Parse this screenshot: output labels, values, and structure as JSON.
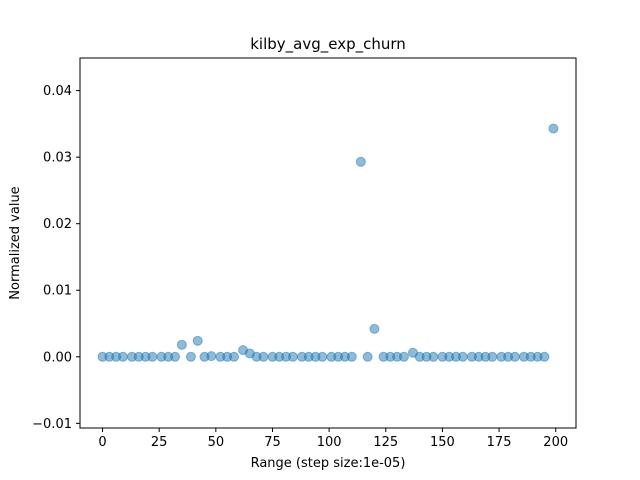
{
  "chart_data": {
    "type": "scatter",
    "title": "kilby_avg_exp_churn",
    "xlabel": "Range (step size:1e-05)",
    "ylabel": "Normalized value",
    "xlim": [
      -9.95,
      208.95
    ],
    "ylim": [
      -0.0107,
      0.0449
    ],
    "xticks": [
      0,
      25,
      50,
      75,
      100,
      125,
      150,
      175,
      200
    ],
    "xtick_labels": [
      "0",
      "25",
      "50",
      "75",
      "100",
      "125",
      "150",
      "175",
      "200"
    ],
    "yticks": [
      -0.01,
      0.0,
      0.01,
      0.02,
      0.03,
      0.04
    ],
    "ytick_labels": [
      "−0.01",
      "0.00",
      "0.01",
      "0.02",
      "0.03",
      "0.04"
    ],
    "grid": false,
    "marker_color": "#1f77b4",
    "marker_alpha": 0.5,
    "points": [
      [
        0,
        0.0
      ],
      [
        3,
        0.0
      ],
      [
        6,
        0.0
      ],
      [
        9,
        0.0
      ],
      [
        13,
        0.0
      ],
      [
        16,
        0.0
      ],
      [
        19,
        0.0
      ],
      [
        22,
        0.0
      ],
      [
        26,
        0.0
      ],
      [
        29,
        0.0
      ],
      [
        32,
        0.0
      ],
      [
        35,
        0.0018
      ],
      [
        39,
        0.0
      ],
      [
        42,
        0.0024
      ],
      [
        45,
        0.0
      ],
      [
        48,
        0.0001
      ],
      [
        52,
        0.0
      ],
      [
        55,
        0.0
      ],
      [
        58,
        0.0
      ],
      [
        62,
        0.001
      ],
      [
        65,
        0.0005
      ],
      [
        68,
        0.0
      ],
      [
        71,
        0.0
      ],
      [
        75,
        0.0
      ],
      [
        78,
        0.0
      ],
      [
        81,
        0.0
      ],
      [
        84,
        0.0
      ],
      [
        88,
        0.0
      ],
      [
        91,
        0.0
      ],
      [
        94,
        0.0
      ],
      [
        97,
        0.0
      ],
      [
        101,
        0.0
      ],
      [
        104,
        0.0
      ],
      [
        107,
        0.0
      ],
      [
        110,
        0.0
      ],
      [
        114,
        0.0293
      ],
      [
        117,
        0.0
      ],
      [
        120,
        0.0042
      ],
      [
        124,
        0.0
      ],
      [
        127,
        0.0
      ],
      [
        130,
        0.0
      ],
      [
        133,
        0.0
      ],
      [
        137,
        0.0006
      ],
      [
        140,
        0.0
      ],
      [
        143,
        0.0
      ],
      [
        146,
        0.0
      ],
      [
        150,
        0.0
      ],
      [
        153,
        0.0
      ],
      [
        156,
        0.0
      ],
      [
        159,
        0.0
      ],
      [
        163,
        0.0
      ],
      [
        166,
        0.0
      ],
      [
        169,
        0.0
      ],
      [
        172,
        0.0
      ],
      [
        176,
        0.0
      ],
      [
        179,
        0.0
      ],
      [
        182,
        0.0
      ],
      [
        186,
        0.0
      ],
      [
        189,
        0.0
      ],
      [
        192,
        0.0
      ],
      [
        195,
        0.0
      ],
      [
        199,
        0.0343
      ]
    ]
  }
}
